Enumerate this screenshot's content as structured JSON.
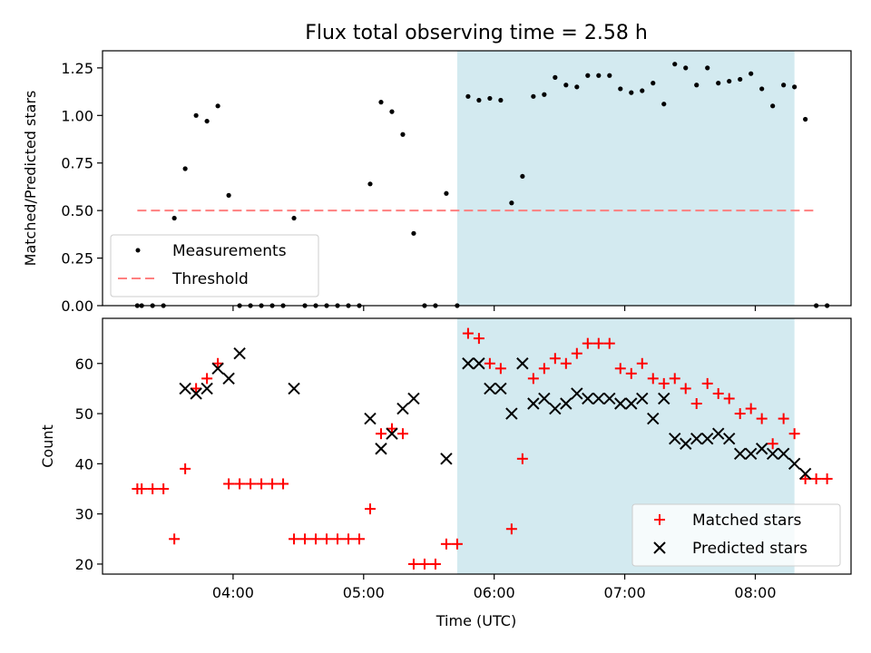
{
  "title": "Flux total observing time = 2.58 h",
  "chart_data": [
    {
      "type": "scatter",
      "ylabel": "Matched/Predicted stars",
      "xlabel": "",
      "xlim": [
        "03:00",
        "08:44"
      ],
      "ylim": [
        0,
        1.34
      ],
      "yticks": [
        0,
        0.25,
        0.5,
        0.75,
        1.0,
        1.25
      ],
      "ytick_labels": [
        "0.00",
        "0.25",
        "0.50",
        "0.75",
        "1.00",
        "1.25"
      ],
      "xticks": [
        "04:00",
        "05:00",
        "06:00",
        "07:00",
        "08:00"
      ],
      "shaded_span": [
        "05:43",
        "08:18"
      ],
      "threshold": {
        "name": "Threshold",
        "value": 0.5,
        "x": [
          "03:16",
          "08:28"
        ],
        "color": "#ff7f7f"
      },
      "legend": {
        "placement": "bottom-left",
        "entries": [
          "Measurements",
          "Threshold"
        ]
      },
      "series": [
        {
          "name": "Measurements",
          "color": "#000000",
          "points": [
            [
              "03:16",
              0
            ],
            [
              "03:18",
              0
            ],
            [
              "03:23",
              0
            ],
            [
              "03:28",
              0
            ],
            [
              "03:33",
              0.46
            ],
            [
              "03:38",
              0.72
            ],
            [
              "03:43",
              1.0
            ],
            [
              "03:48",
              0.97
            ],
            [
              "03:53",
              1.05
            ],
            [
              "03:58",
              0.58
            ],
            [
              "04:03",
              0
            ],
            [
              "04:08",
              0
            ],
            [
              "04:13",
              0
            ],
            [
              "04:18",
              0
            ],
            [
              "04:23",
              0
            ],
            [
              "04:28",
              0.46
            ],
            [
              "04:33",
              0
            ],
            [
              "04:38",
              0
            ],
            [
              "04:43",
              0
            ],
            [
              "04:48",
              0
            ],
            [
              "04:53",
              0
            ],
            [
              "04:58",
              0
            ],
            [
              "05:03",
              0.64
            ],
            [
              "05:08",
              1.07
            ],
            [
              "05:13",
              1.02
            ],
            [
              "05:18",
              0.9
            ],
            [
              "05:23",
              0.38
            ],
            [
              "05:28",
              0
            ],
            [
              "05:33",
              0
            ],
            [
              "05:38",
              0.59
            ],
            [
              "05:43",
              0
            ],
            [
              "05:48",
              1.1
            ],
            [
              "05:53",
              1.08
            ],
            [
              "05:58",
              1.09
            ],
            [
              "06:03",
              1.08
            ],
            [
              "06:08",
              0.54
            ],
            [
              "06:13",
              0.68
            ],
            [
              "06:18",
              1.1
            ],
            [
              "06:23",
              1.11
            ],
            [
              "06:28",
              1.2
            ],
            [
              "06:33",
              1.16
            ],
            [
              "06:38",
              1.15
            ],
            [
              "06:43",
              1.21
            ],
            [
              "06:48",
              1.21
            ],
            [
              "06:53",
              1.21
            ],
            [
              "06:58",
              1.14
            ],
            [
              "07:03",
              1.12
            ],
            [
              "07:08",
              1.13
            ],
            [
              "07:13",
              1.17
            ],
            [
              "07:18",
              1.06
            ],
            [
              "07:23",
              1.27
            ],
            [
              "07:28",
              1.25
            ],
            [
              "07:33",
              1.16
            ],
            [
              "07:38",
              1.25
            ],
            [
              "07:43",
              1.17
            ],
            [
              "07:48",
              1.18
            ],
            [
              "07:53",
              1.19
            ],
            [
              "07:58",
              1.22
            ],
            [
              "08:03",
              1.14
            ],
            [
              "08:08",
              1.05
            ],
            [
              "08:13",
              1.16
            ],
            [
              "08:18",
              1.15
            ],
            [
              "08:23",
              0.98
            ],
            [
              "08:28",
              0
            ],
            [
              "08:33",
              0
            ]
          ]
        }
      ]
    },
    {
      "type": "scatter",
      "ylabel": "Count",
      "xlabel": "Time (UTC)",
      "xlim": [
        "03:00",
        "08:44"
      ],
      "ylim": [
        18,
        69
      ],
      "yticks": [
        20,
        30,
        40,
        50,
        60
      ],
      "ytick_labels": [
        "20",
        "30",
        "40",
        "50",
        "60"
      ],
      "xticks": [
        "04:00",
        "05:00",
        "06:00",
        "07:00",
        "08:00"
      ],
      "shaded_span": [
        "05:43",
        "08:18"
      ],
      "legend": {
        "placement": "bottom-right",
        "entries": [
          "Matched stars",
          "Predicted stars"
        ]
      },
      "series": [
        {
          "name": "Matched stars",
          "marker": "plus",
          "color": "#ff0000",
          "points": [
            [
              "03:16",
              35
            ],
            [
              "03:18",
              35
            ],
            [
              "03:23",
              35
            ],
            [
              "03:28",
              35
            ],
            [
              "03:33",
              25
            ],
            [
              "03:38",
              39
            ],
            [
              "03:43",
              55
            ],
            [
              "03:48",
              57
            ],
            [
              "03:53",
              60
            ],
            [
              "03:58",
              36
            ],
            [
              "04:03",
              36
            ],
            [
              "04:08",
              36
            ],
            [
              "04:13",
              36
            ],
            [
              "04:18",
              36
            ],
            [
              "04:23",
              36
            ],
            [
              "04:28",
              25
            ],
            [
              "04:33",
              25
            ],
            [
              "04:38",
              25
            ],
            [
              "04:43",
              25
            ],
            [
              "04:48",
              25
            ],
            [
              "04:53",
              25
            ],
            [
              "04:58",
              25
            ],
            [
              "05:03",
              31
            ],
            [
              "05:08",
              46
            ],
            [
              "05:13",
              47
            ],
            [
              "05:18",
              46
            ],
            [
              "05:23",
              20
            ],
            [
              "05:28",
              20
            ],
            [
              "05:33",
              20
            ],
            [
              "05:38",
              24
            ],
            [
              "05:43",
              24
            ],
            [
              "05:48",
              66
            ],
            [
              "05:53",
              65
            ],
            [
              "05:58",
              60
            ],
            [
              "06:03",
              59
            ],
            [
              "06:08",
              27
            ],
            [
              "06:13",
              41
            ],
            [
              "06:18",
              57
            ],
            [
              "06:23",
              59
            ],
            [
              "06:28",
              61
            ],
            [
              "06:33",
              60
            ],
            [
              "06:38",
              62
            ],
            [
              "06:43",
              64
            ],
            [
              "06:48",
              64
            ],
            [
              "06:53",
              64
            ],
            [
              "06:58",
              59
            ],
            [
              "07:03",
              58
            ],
            [
              "07:08",
              60
            ],
            [
              "07:13",
              57
            ],
            [
              "07:18",
              56
            ],
            [
              "07:23",
              57
            ],
            [
              "07:28",
              55
            ],
            [
              "07:33",
              52
            ],
            [
              "07:38",
              56
            ],
            [
              "07:43",
              54
            ],
            [
              "07:48",
              53
            ],
            [
              "07:53",
              50
            ],
            [
              "07:58",
              51
            ],
            [
              "08:03",
              49
            ],
            [
              "08:08",
              44
            ],
            [
              "08:13",
              49
            ],
            [
              "08:18",
              46
            ],
            [
              "08:23",
              37
            ],
            [
              "08:28",
              37
            ],
            [
              "08:33",
              37
            ]
          ]
        },
        {
          "name": "Predicted stars",
          "marker": "x",
          "color": "#000000",
          "points": [
            [
              "03:38",
              55
            ],
            [
              "03:43",
              54
            ],
            [
              "03:48",
              55
            ],
            [
              "03:53",
              59
            ],
            [
              "03:58",
              57
            ],
            [
              "04:03",
              62
            ],
            [
              "04:28",
              55
            ],
            [
              "05:03",
              49
            ],
            [
              "05:08",
              43
            ],
            [
              "05:13",
              46
            ],
            [
              "05:18",
              51
            ],
            [
              "05:23",
              53
            ],
            [
              "05:38",
              41
            ],
            [
              "05:48",
              60
            ],
            [
              "05:53",
              60
            ],
            [
              "05:58",
              55
            ],
            [
              "06:03",
              55
            ],
            [
              "06:08",
              50
            ],
            [
              "06:13",
              60
            ],
            [
              "06:18",
              52
            ],
            [
              "06:23",
              53
            ],
            [
              "06:28",
              51
            ],
            [
              "06:33",
              52
            ],
            [
              "06:38",
              54
            ],
            [
              "06:43",
              53
            ],
            [
              "06:48",
              53
            ],
            [
              "06:53",
              53
            ],
            [
              "06:58",
              52
            ],
            [
              "07:03",
              52
            ],
            [
              "07:08",
              53
            ],
            [
              "07:13",
              49
            ],
            [
              "07:18",
              53
            ],
            [
              "07:23",
              45
            ],
            [
              "07:28",
              44
            ],
            [
              "07:33",
              45
            ],
            [
              "07:38",
              45
            ],
            [
              "07:43",
              46
            ],
            [
              "07:48",
              45
            ],
            [
              "07:53",
              42
            ],
            [
              "07:58",
              42
            ],
            [
              "08:03",
              43
            ],
            [
              "08:08",
              42
            ],
            [
              "08:13",
              42
            ],
            [
              "08:18",
              40
            ],
            [
              "08:23",
              38
            ]
          ]
        }
      ]
    }
  ]
}
